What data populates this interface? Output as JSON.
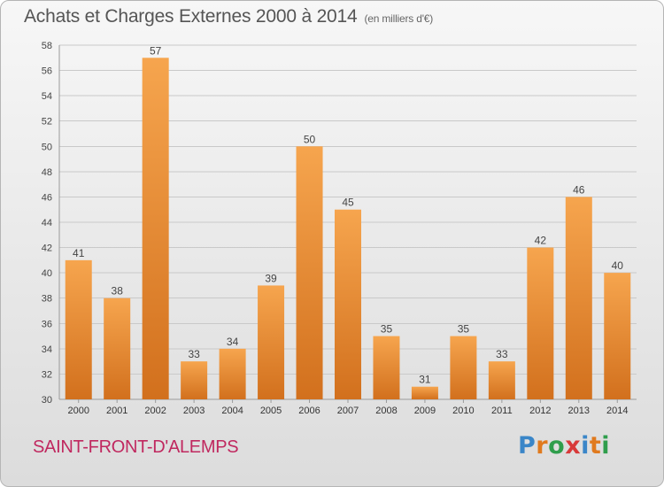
{
  "header": {
    "title": "Achats et Charges Externes 2000 à 2014",
    "unit": "(en milliers d'€)"
  },
  "footer": {
    "location": "SAINT-FRONT-D'ALEMPS",
    "logo_text": "Proxiti"
  },
  "colors": {
    "bar_light": "#f6a54e",
    "bar_dark": "#d2701d",
    "text": "#555555",
    "location": "#c0285f",
    "logo": [
      "#3a86c8",
      "#e07a1e",
      "#2f9e4c",
      "#d83a3a",
      "#3a86c8",
      "#e07a1e",
      "#2f9e4c"
    ]
  },
  "chart_data": {
    "type": "bar",
    "title": "Achats et Charges Externes 2000 à 2014",
    "subtitle": "(en milliers d'€)",
    "categories": [
      "2000",
      "2001",
      "2002",
      "2003",
      "2004",
      "2005",
      "2006",
      "2007",
      "2008",
      "2009",
      "2010",
      "2011",
      "2012",
      "2013",
      "2014"
    ],
    "values": [
      41,
      38,
      57,
      33,
      34,
      39,
      50,
      45,
      35,
      31,
      35,
      33,
      42,
      46,
      40
    ],
    "ylim": [
      30,
      58
    ],
    "yticks": [
      30,
      32,
      34,
      36,
      38,
      40,
      42,
      44,
      46,
      48,
      50,
      52,
      54,
      56,
      58
    ],
    "grid": true,
    "data_labels": true
  }
}
